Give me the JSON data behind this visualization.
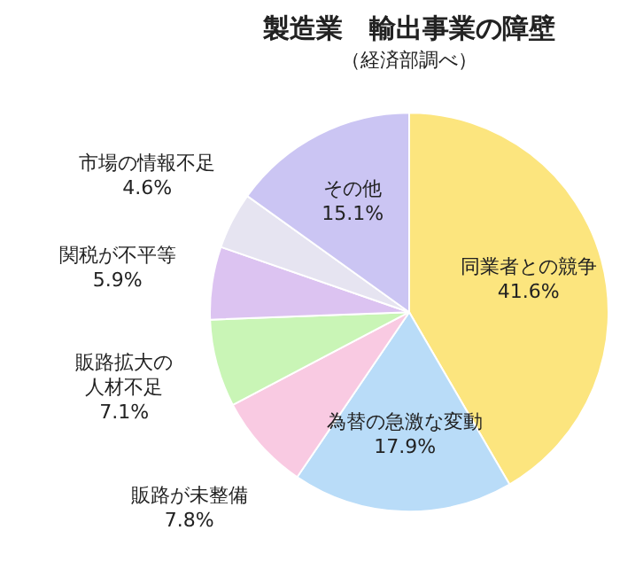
{
  "chart_data": {
    "type": "pie",
    "title": "製造業　輸出事業の障壁",
    "subtitle": "（経済部調べ）",
    "categories": [
      "同業者との競争",
      "為替の急激な変動",
      "販路が未整備",
      "販路拡大の人材不足",
      "関税が不平等",
      "市場の情報不足",
      "その他"
    ],
    "values": [
      41.6,
      17.9,
      7.8,
      7.1,
      5.9,
      4.6,
      15.1
    ],
    "colors": [
      "#fce57e",
      "#b9dcf8",
      "#f9cae2",
      "#c9f5b6",
      "#dcc3f1",
      "#e6e4f1",
      "#cbc5f3"
    ],
    "value_labels": [
      "41.6%",
      "17.9%",
      "7.8%",
      "7.1%",
      "5.9%",
      "4.6%",
      "15.1%"
    ],
    "legend": false
  }
}
